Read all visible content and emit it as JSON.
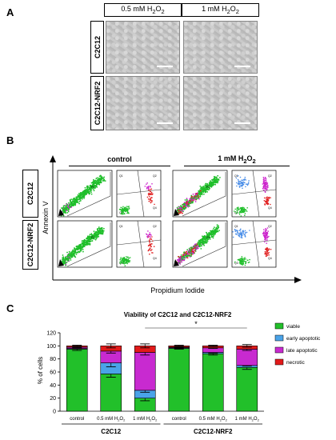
{
  "panel_a": {
    "letter": "A",
    "columns": [
      {
        "pre": "0.5 mM H",
        "sub": "2",
        "mid": "O",
        "sub2": "2"
      },
      {
        "pre": "1 mM H",
        "sub": "2",
        "mid": "O",
        "sub2": "2"
      }
    ],
    "rows": [
      "C2C12",
      "C2C12-NRF2"
    ]
  },
  "panel_b": {
    "letter": "B",
    "columns": [
      {
        "pre": "control",
        "sub": "",
        "mid": "",
        "sub2": ""
      },
      {
        "pre": "1 mM H",
        "sub": "2",
        "mid": "O",
        "sub2": "2"
      }
    ],
    "rows": [
      "C2C12",
      "C2C12-NRF2"
    ],
    "y_axis_label": "Annexin V",
    "x_axis_label": "Propidium Iodide",
    "gate_label": "P1",
    "quadrants": [
      "Q1",
      "Q2",
      "Q3",
      "Q4"
    ]
  },
  "panel_c": {
    "letter": "C",
    "chart_data": {
      "type": "bar",
      "stacked": true,
      "title": "Viability of C2C12 and C2C12-NRF2",
      "ylabel": "% of cells",
      "ylim": [
        0,
        120
      ],
      "yticks": [
        0,
        20,
        40,
        60,
        80,
        100,
        120
      ],
      "categories": [
        {
          "pre": "control",
          "sub": "",
          "mid": "",
          "sub2": ""
        },
        {
          "pre": "0.5 mM H",
          "sub": "2",
          "mid": "O",
          "sub2": "2"
        },
        {
          "pre": "1 mM H",
          "sub": "2",
          "mid": "O",
          "sub2": "2"
        },
        {
          "pre": "control",
          "sub": "",
          "mid": "",
          "sub2": ""
        },
        {
          "pre": "0.5 mM H",
          "sub": "2",
          "mid": "O",
          "sub2": "2"
        },
        {
          "pre": "1 mM H",
          "sub": "2",
          "mid": "O",
          "sub2": "2"
        }
      ],
      "groups": [
        {
          "label": "C2C12",
          "span": [
            0,
            2
          ]
        },
        {
          "label": "C2C12-NRF2",
          "span": [
            3,
            5
          ]
        }
      ],
      "series": [
        {
          "name": "viable",
          "color": "#22c02a",
          "values": [
            95,
            57,
            20,
            96,
            88,
            67
          ],
          "errors": [
            2,
            5,
            4,
            1,
            2,
            3
          ]
        },
        {
          "name": "early apoptotic",
          "color": "#4aa3e8",
          "values": [
            1,
            17,
            12,
            1,
            2,
            3
          ],
          "errors": [
            0.5,
            6,
            3,
            0.5,
            1,
            1
          ]
        },
        {
          "name": "late apoptotic",
          "color": "#c82ad0",
          "values": [
            2,
            18,
            58,
            1,
            7,
            25
          ],
          "errors": [
            1,
            3,
            4,
            0.5,
            1,
            2
          ]
        },
        {
          "name": "necrotic",
          "color": "#e21a1a",
          "values": [
            2,
            8,
            10,
            2,
            3,
            5
          ],
          "errors": [
            1,
            3,
            3,
            1,
            1,
            2
          ]
        }
      ],
      "significance": {
        "from": 2,
        "to": 5,
        "label": "*"
      }
    }
  }
}
